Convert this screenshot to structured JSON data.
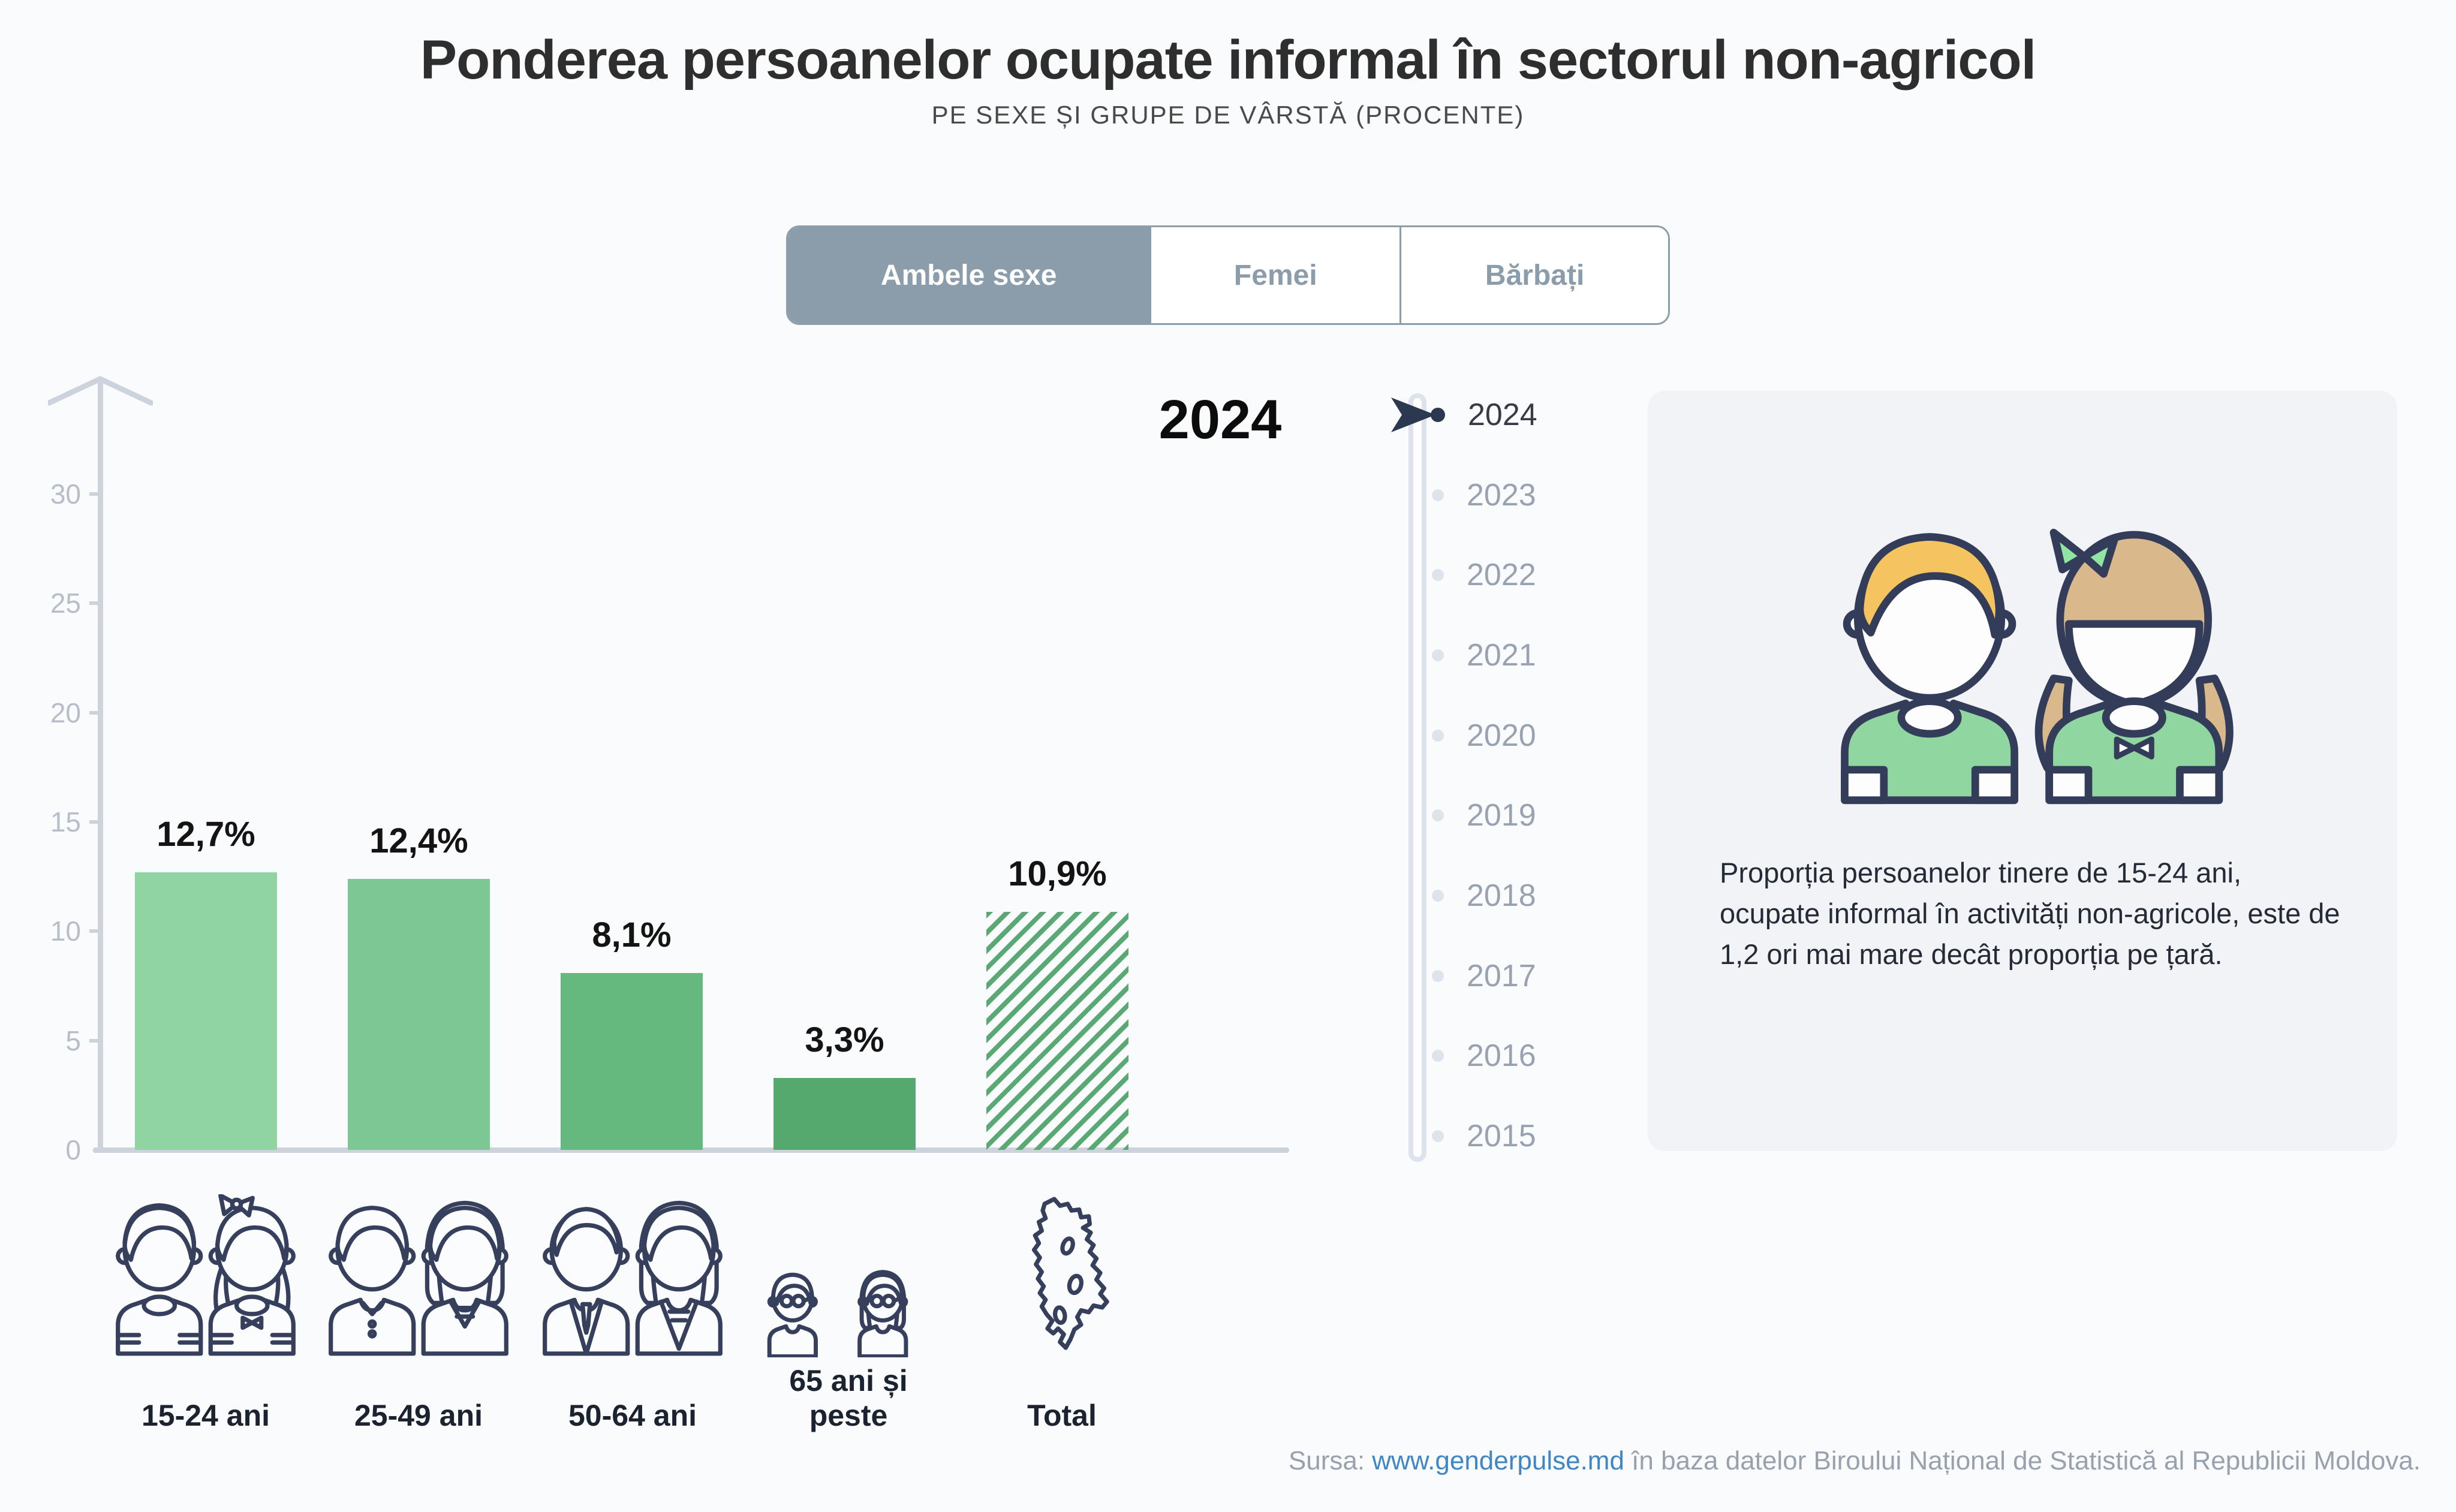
{
  "header": {
    "title": "Ponderea persoanelor ocupate informal în sectorul non-agricol",
    "subtitle": "PE SEXE ȘI GRUPE DE VÂRSTĂ (PROCENTE)"
  },
  "tabs": [
    {
      "label": "Ambele sexe",
      "selected": true
    },
    {
      "label": "Femei",
      "selected": false
    },
    {
      "label": "Bărbați",
      "selected": false
    }
  ],
  "timeline": {
    "selected_year": "2024",
    "years": [
      "2024",
      "2023",
      "2022",
      "2021",
      "2020",
      "2019",
      "2018",
      "2017",
      "2016",
      "2015"
    ]
  },
  "chart_data": {
    "type": "bar",
    "title": "Ponderea persoanelor ocupate informal în sectorul non-agricol",
    "subtitle": "PE SEXE ȘI GRUPE DE VÂRSTĂ (PROCENTE)",
    "year": "2024",
    "sex_filter": "Ambele sexe",
    "categories": [
      "15-24 ani",
      "25-49 ani",
      "50-64 ani",
      "65 ani și peste",
      "Total"
    ],
    "values": [
      12.7,
      12.4,
      8.1,
      3.3,
      10.9
    ],
    "value_labels": [
      "12,7%",
      "12,4%",
      "8,1%",
      "3,3%",
      "10,9%"
    ],
    "unit": "%",
    "ylim": [
      0,
      32
    ],
    "y_ticks": [
      0,
      5,
      10,
      15,
      20,
      25,
      30
    ],
    "y_tick_labels_top_down": [
      "30",
      "25",
      "20",
      "15",
      "10",
      "5",
      "0"
    ],
    "bar_colors": [
      "#90d5a1",
      "#7dc795",
      "#65b87e",
      "#55a96f",
      null
    ],
    "total_bar_style": {
      "pattern": "diagonal-hatch",
      "color": "#5aa873"
    },
    "grid": false,
    "legend_position": "none"
  },
  "info_card": {
    "text": "Proporția persoanelor tinere de 15-24 ani, ocupate informal în activități non-agricole, este de 1,2 ori mai mare decât proporția pe țară."
  },
  "footer": {
    "prefix": "Sursa: ",
    "link": "www.genderpulse.md",
    "suffix": " în baza datelor Biroului Național de Statistică al Republicii Moldova."
  },
  "icons": {
    "age_group_icons": [
      "young-couple-icon",
      "adult-couple-icon",
      "senior-couple-icon",
      "elderly-couple-icon"
    ],
    "total_icon": "moldova-map-icon",
    "timeline_cursor_icon": "play-arrow-icon",
    "y_axis_icon": "up-arrow-icon"
  },
  "colors": {
    "background": "#fafbfc",
    "tab_accent": "#8b9dab",
    "axis": "#ccd3dc",
    "tick_text": "#b7bec9",
    "value_text": "#141414",
    "timeline_active": "#2c3850",
    "timeline_inactive": "#98a2b0",
    "card_bg": "#f1f3f7",
    "icon_stroke": "#363f5c",
    "boy_hair": "#f6c45e",
    "girl_hair": "#d9b98c",
    "shirt_green": "#8fd6a0",
    "bow_green": "#8ee6a2",
    "link": "#3f86c5",
    "footer_text": "#98a1ad"
  }
}
